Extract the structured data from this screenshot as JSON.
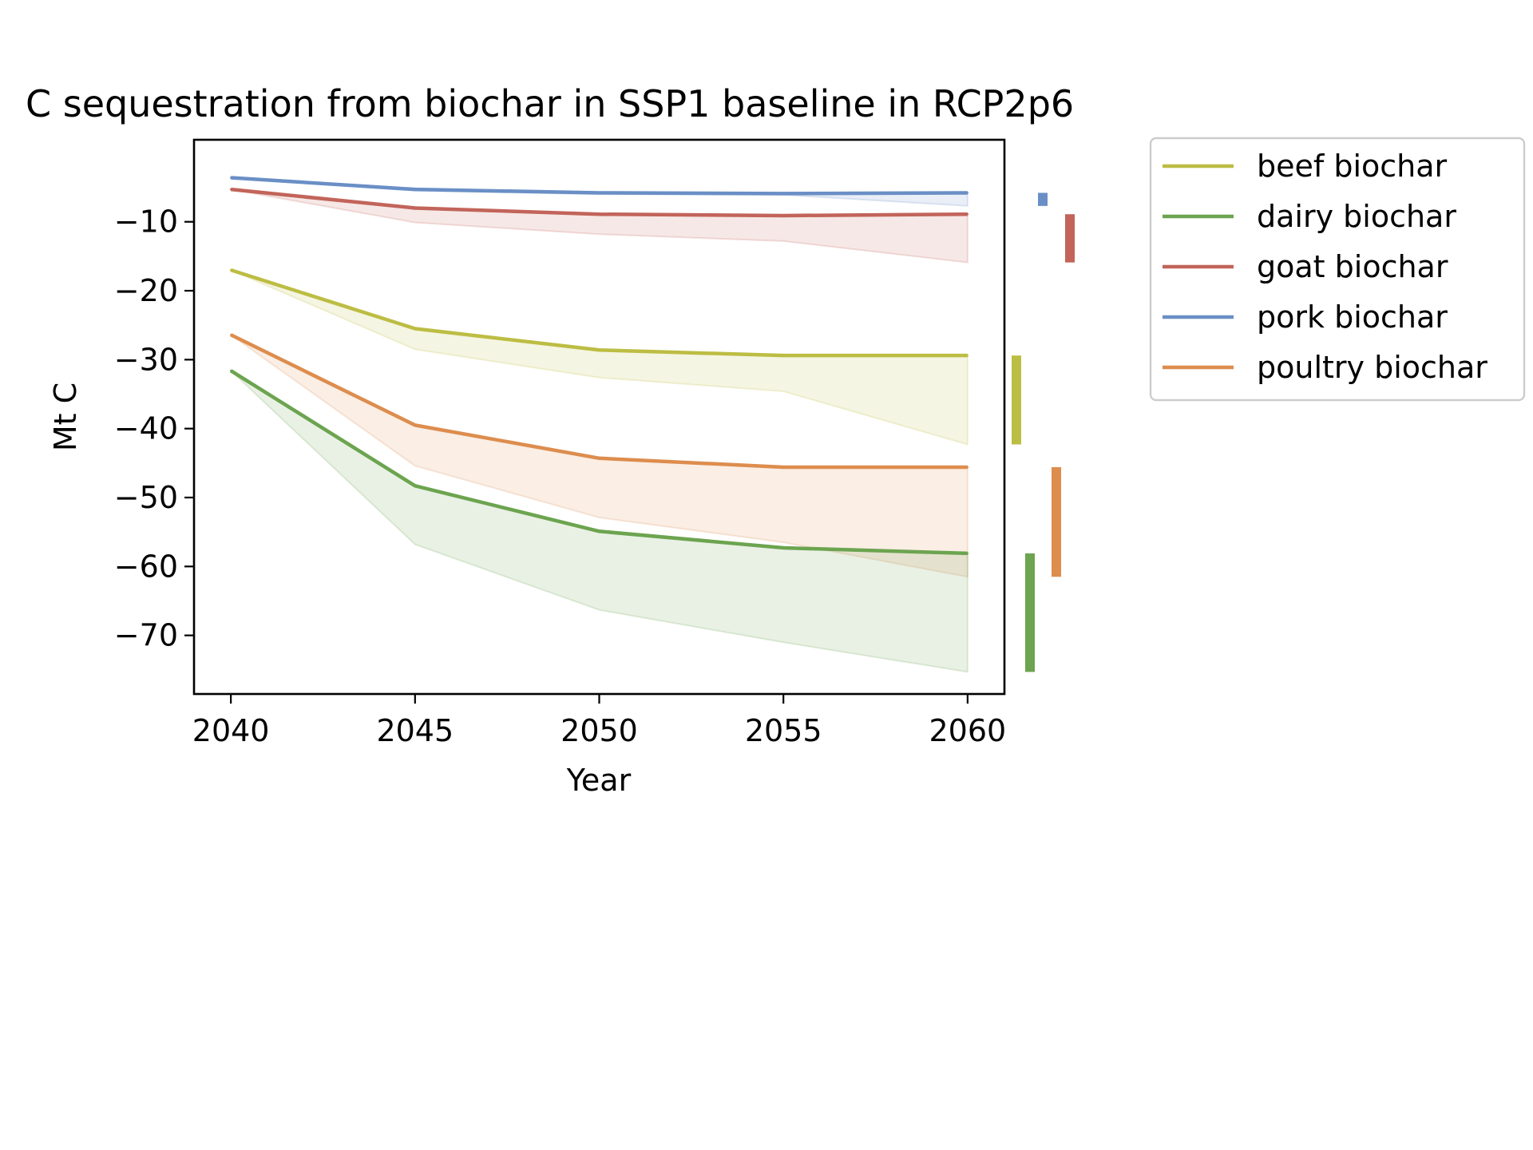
{
  "chart_data": {
    "type": "line",
    "title": "C sequestration from biochar in SSP1 baseline in RCP2p6",
    "xlabel": "Year",
    "ylabel": "Mt C",
    "x": [
      2040,
      2045,
      2050,
      2055,
      2060
    ],
    "xlim": [
      2039,
      2061
    ],
    "ylim": [
      -78.5,
      1.9
    ],
    "xticks": [
      2040,
      2045,
      2050,
      2055,
      2060
    ],
    "xtick_labels": [
      "2040",
      "2045",
      "2050",
      "2055",
      "2060"
    ],
    "yticks": [
      -10,
      -20,
      -30,
      -40,
      -50,
      -60,
      -70
    ],
    "ytick_labels": [
      "−10",
      "−20",
      "−30",
      "−40",
      "−50",
      "−60",
      "−70"
    ],
    "grid": false,
    "legend_position": "outside-right-top",
    "series": [
      {
        "name": "beef biochar",
        "color": "#bcbd43",
        "values": [
          -17.0,
          -25.5,
          -28.6,
          -29.4,
          -29.4
        ],
        "band_low": [
          -17.0,
          -28.5,
          -32.6,
          -34.6,
          -42.3
        ],
        "range_bar": [
          -29.4,
          -42.3
        ]
      },
      {
        "name": "dairy biochar",
        "color": "#6ca44f",
        "values": [
          -31.6,
          -48.3,
          -54.9,
          -57.3,
          -58.1
        ],
        "band_low": [
          -31.6,
          -56.8,
          -66.3,
          -71.0,
          -75.3
        ],
        "range_bar": [
          -58.1,
          -75.3
        ]
      },
      {
        "name": "goat biochar",
        "color": "#c2645a",
        "values": [
          -5.3,
          -8.0,
          -8.9,
          -9.1,
          -8.9
        ],
        "band_low": [
          -5.3,
          -10.1,
          -11.8,
          -12.8,
          -15.9
        ],
        "range_bar": [
          -8.9,
          -15.9
        ]
      },
      {
        "name": "pork biochar",
        "color": "#6a8fc6",
        "values": [
          -3.6,
          -5.3,
          -5.8,
          -5.9,
          -5.8
        ],
        "band_low": [
          -3.6,
          -5.5,
          -6.0,
          -6.1,
          -7.7
        ],
        "range_bar": [
          -5.8,
          -7.7
        ]
      },
      {
        "name": "poultry biochar",
        "color": "#dd8d4e",
        "values": [
          -26.4,
          -39.5,
          -44.3,
          -45.6,
          -45.6
        ],
        "band_low": [
          -26.4,
          -45.4,
          -52.9,
          -56.5,
          -61.5
        ],
        "range_bar": [
          -45.6,
          -61.5
        ]
      }
    ]
  }
}
